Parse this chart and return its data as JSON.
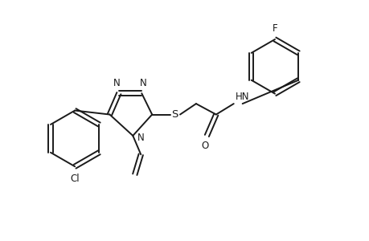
{
  "bg_color": "#ffffff",
  "line_color": "#1a1a1a",
  "line_width": 1.4,
  "font_size": 8.5,
  "figsize": [
    4.6,
    3.0
  ],
  "dpi": 100,
  "xlim": [
    0,
    9.2
  ],
  "ylim": [
    0,
    6.0
  ]
}
